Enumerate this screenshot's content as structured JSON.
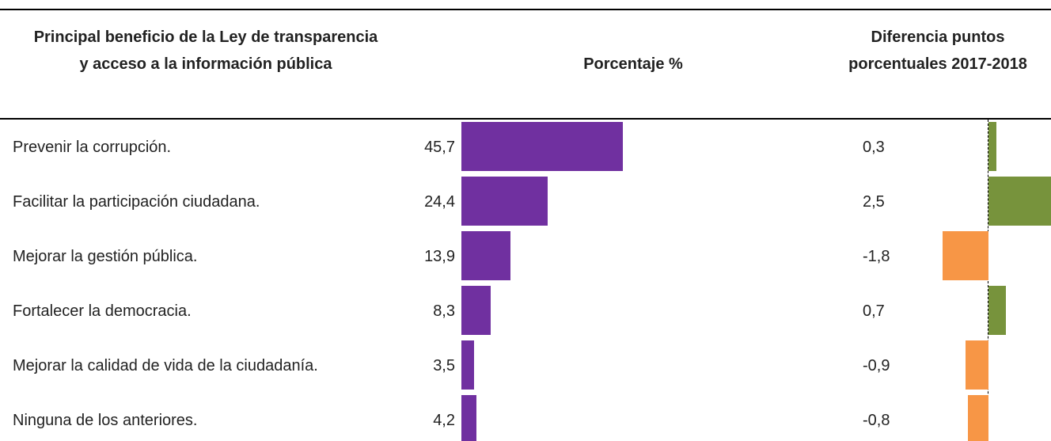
{
  "chart_data": {
    "type": "bar",
    "headers": [
      "Principal beneficio de la Ley de transparencia y acceso a la información pública",
      "Porcentaje %",
      "Diferencia puntos porcentuales 2017-2018"
    ],
    "categories": [
      "Prevenir la corrupción.",
      "Facilitar la participación ciudadana.",
      "Mejorar la gestión pública.",
      "Fortalecer la democracia.",
      "Mejorar la calidad de vida de la ciudadanía.",
      "Ninguna de los anteriores."
    ],
    "values": [
      45.7,
      24.4,
      13.9,
      8.3,
      3.5,
      4.2
    ],
    "value_labels": [
      "45,7",
      "24,4",
      "13,9",
      "8,3",
      "3,5",
      "4,2"
    ],
    "color": "#7030a0",
    "difference": {
      "values": [
        0.3,
        2.5,
        -1.8,
        0.7,
        -0.9,
        -0.8
      ],
      "value_labels": [
        "0,3",
        "2,5",
        "-1,8",
        "0,7",
        "-0,9",
        "-0,8"
      ],
      "positive_color": "#77933c",
      "negative_color": "#f79646"
    }
  }
}
